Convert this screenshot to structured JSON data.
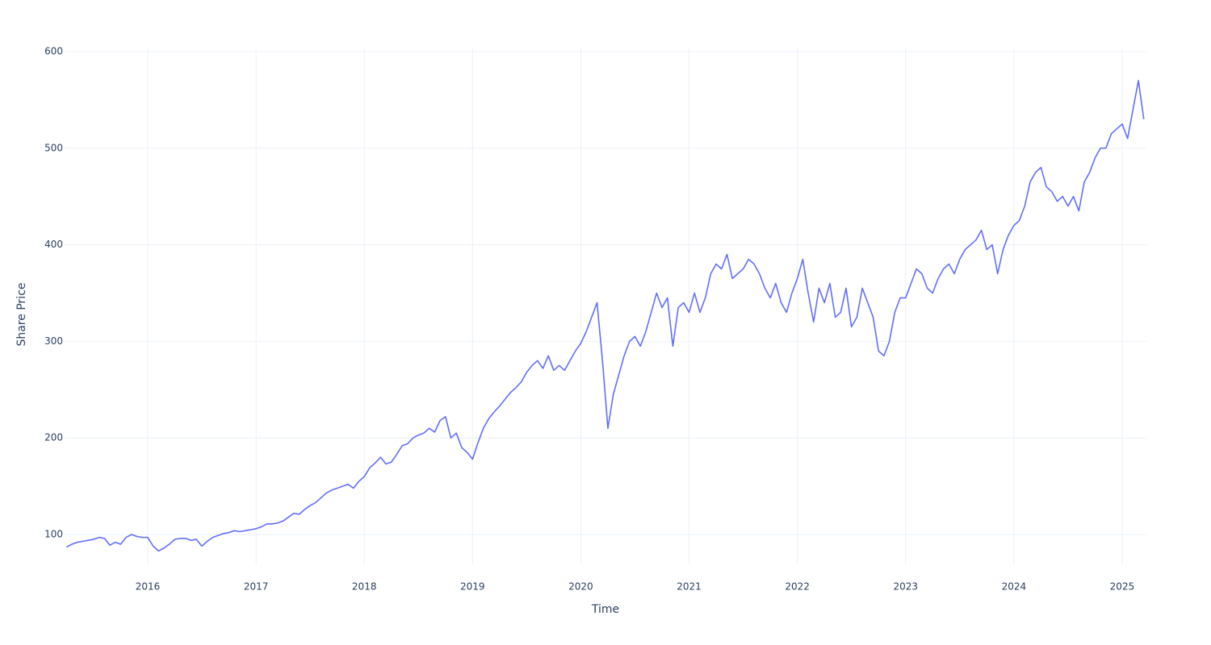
{
  "chart_data": {
    "type": "line",
    "x_label": "Time",
    "y_label": "Share Price",
    "x": [
      2015.25,
      2015.3,
      2015.35,
      2015.4,
      2015.45,
      2015.5,
      2015.55,
      2015.6,
      2015.65,
      2015.7,
      2015.75,
      2015.8,
      2015.85,
      2015.9,
      2015.95,
      2016,
      2016.05,
      2016.1,
      2016.15,
      2016.2,
      2016.25,
      2016.3,
      2016.35,
      2016.4,
      2016.45,
      2016.5,
      2016.55,
      2016.6,
      2016.65,
      2016.7,
      2016.75,
      2016.8,
      2016.85,
      2016.9,
      2016.95,
      2017,
      2017.05,
      2017.1,
      2017.15,
      2017.2,
      2017.25,
      2017.3,
      2017.35,
      2017.4,
      2017.45,
      2017.5,
      2017.55,
      2017.6,
      2017.65,
      2017.7,
      2017.75,
      2017.8,
      2017.85,
      2017.9,
      2017.95,
      2018,
      2018.05,
      2018.1,
      2018.15,
      2018.2,
      2018.25,
      2018.3,
      2018.35,
      2018.4,
      2018.45,
      2018.5,
      2018.55,
      2018.6,
      2018.65,
      2018.7,
      2018.75,
      2018.8,
      2018.85,
      2018.9,
      2018.95,
      2019,
      2019.05,
      2019.1,
      2019.15,
      2019.2,
      2019.25,
      2019.3,
      2019.35,
      2019.4,
      2019.45,
      2019.5,
      2019.55,
      2019.6,
      2019.65,
      2019.7,
      2019.75,
      2019.8,
      2019.85,
      2019.9,
      2019.95,
      2020,
      2020.05,
      2020.1,
      2020.15,
      2020.2,
      2020.25,
      2020.3,
      2020.35,
      2020.4,
      2020.45,
      2020.5,
      2020.55,
      2020.6,
      2020.65,
      2020.7,
      2020.75,
      2020.8,
      2020.85,
      2020.9,
      2020.95,
      2021,
      2021.05,
      2021.1,
      2021.15,
      2021.2,
      2021.25,
      2021.3,
      2021.35,
      2021.4,
      2021.45,
      2021.5,
      2021.55,
      2021.6,
      2021.65,
      2021.7,
      2021.75,
      2021.8,
      2021.85,
      2021.9,
      2021.95,
      2022,
      2022.05,
      2022.1,
      2022.15,
      2022.2,
      2022.25,
      2022.3,
      2022.35,
      2022.4,
      2022.45,
      2022.5,
      2022.55,
      2022.6,
      2022.65,
      2022.7,
      2022.75,
      2022.8,
      2022.85,
      2022.9,
      2022.95,
      2023,
      2023.05,
      2023.1,
      2023.15,
      2023.2,
      2023.25,
      2023.3,
      2023.35,
      2023.4,
      2023.45,
      2023.5,
      2023.55,
      2023.6,
      2023.65,
      2023.7,
      2023.75,
      2023.8,
      2023.85,
      2023.9,
      2023.95,
      2024,
      2024.05,
      2024.1,
      2024.15,
      2024.2,
      2024.25,
      2024.3,
      2024.35,
      2024.4,
      2024.45,
      2024.5,
      2024.55,
      2024.6,
      2024.65,
      2024.7,
      2024.75,
      2024.8,
      2024.85,
      2024.9,
      2024.95,
      2025,
      2025.05,
      2025.1,
      2025.15,
      2025.2
    ],
    "values": [
      87,
      90,
      92,
      93,
      94,
      95,
      97,
      96,
      89,
      92,
      90,
      97,
      100,
      98,
      97,
      97,
      88,
      83,
      86,
      90,
      95,
      96,
      96,
      94,
      95,
      88,
      93,
      97,
      99,
      101,
      102,
      104,
      103,
      104,
      105,
      106,
      108,
      111,
      111,
      112,
      114,
      118,
      122,
      121,
      126,
      130,
      133,
      138,
      143,
      146,
      148,
      150,
      152,
      148,
      155,
      160,
      169,
      174,
      180,
      173,
      175,
      183,
      192,
      194,
      200,
      203,
      205,
      210,
      206,
      218,
      222,
      200,
      205,
      190,
      185,
      178,
      195,
      210,
      220,
      227,
      233,
      240,
      247,
      252,
      258,
      268,
      275,
      280,
      272,
      285,
      270,
      275,
      270,
      280,
      290,
      298,
      310,
      325,
      340,
      280,
      210,
      245,
      265,
      285,
      300,
      305,
      295,
      310,
      330,
      350,
      335,
      345,
      295,
      335,
      340,
      330,
      350,
      330,
      345,
      370,
      380,
      375,
      390,
      365,
      370,
      375,
      385,
      380,
      370,
      355,
      345,
      360,
      340,
      330,
      350,
      365,
      385,
      350,
      320,
      355,
      340,
      360,
      325,
      330,
      355,
      315,
      325,
      355,
      340,
      325,
      290,
      285,
      300,
      330,
      345,
      345,
      360,
      375,
      370,
      355,
      350,
      365,
      375,
      380,
      370,
      385,
      395,
      400,
      405,
      415,
      395,
      400,
      370,
      395,
      410,
      420,
      425,
      440,
      465,
      475,
      480,
      460,
      455,
      445,
      450,
      440,
      450,
      435,
      465,
      475,
      490,
      500,
      500,
      515,
      520,
      525,
      510,
      540,
      570,
      530
    ],
    "color": "#636efa",
    "xlim": [
      2015.232,
      2025.224
    ],
    "xticks": [
      2016,
      2017,
      2018,
      2019,
      2020,
      2021,
      2022,
      2023,
      2024,
      2025
    ],
    "ylim": [
      69.1,
      603.3
    ],
    "yticks": [
      100,
      200,
      300,
      400,
      500,
      600
    ],
    "grid": true
  }
}
